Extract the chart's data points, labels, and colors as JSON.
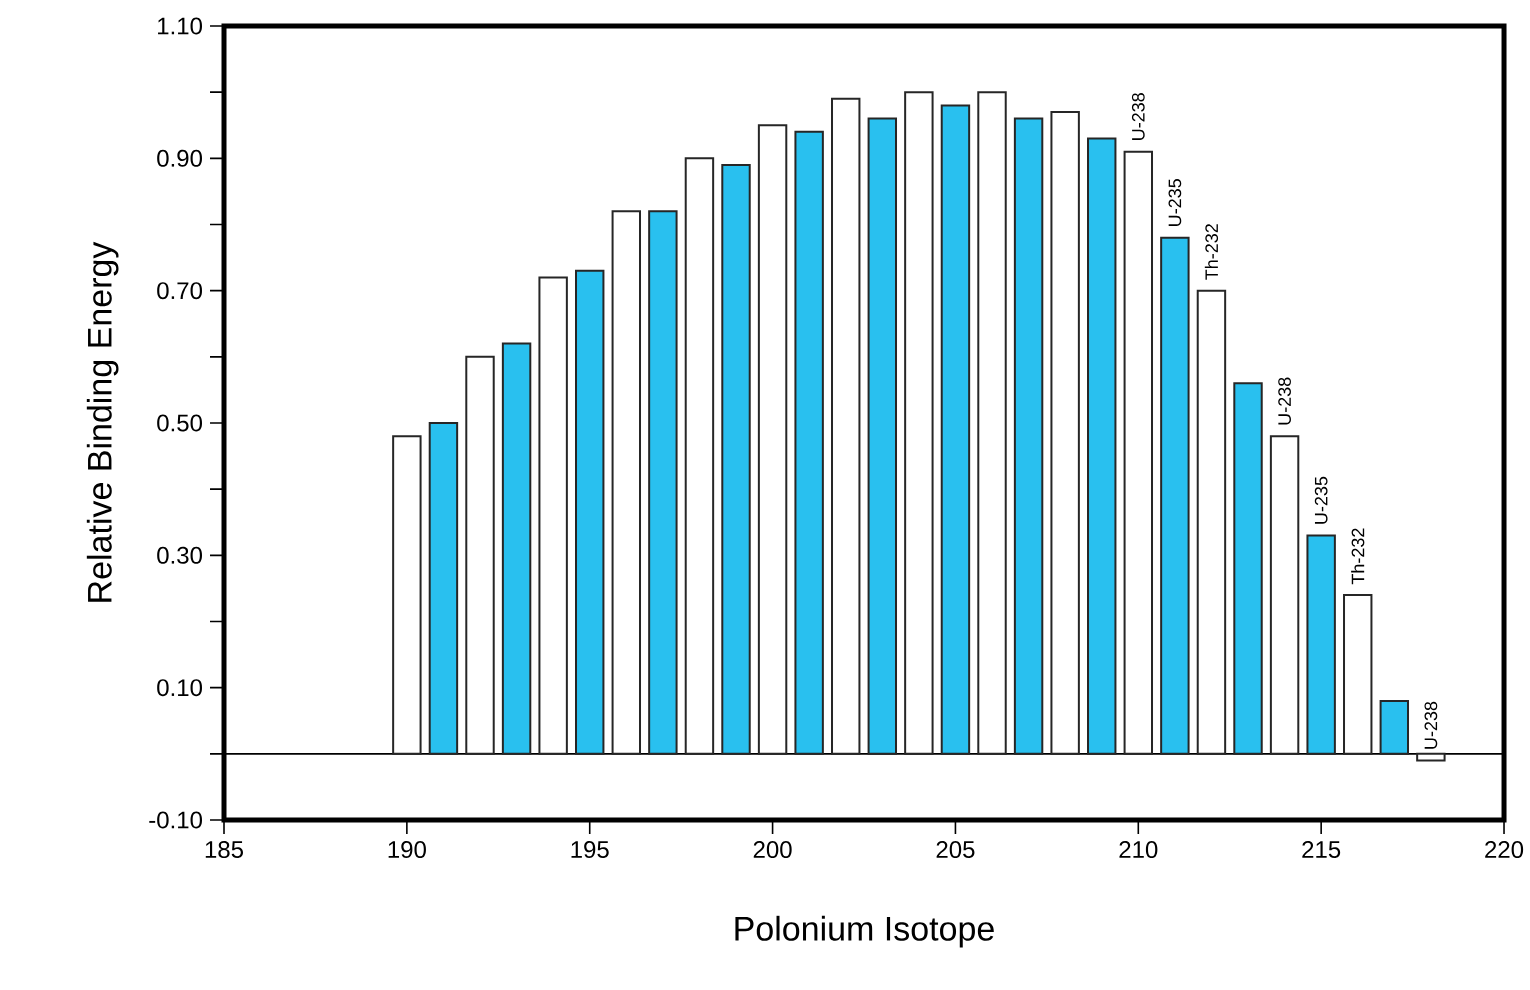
{
  "chart_data": {
    "type": "bar",
    "xlabel": "Polonium Isotope",
    "ylabel": "Relative Binding Energy",
    "x": [
      190,
      191,
      192,
      193,
      194,
      195,
      196,
      197,
      198,
      199,
      200,
      201,
      202,
      203,
      204,
      205,
      206,
      207,
      208,
      209,
      210,
      211,
      212,
      213,
      214,
      215,
      216,
      217,
      218
    ],
    "values": [
      0.48,
      0.5,
      0.6,
      0.62,
      0.72,
      0.73,
      0.82,
      0.82,
      0.9,
      0.89,
      0.95,
      0.94,
      0.99,
      0.96,
      1.0,
      0.98,
      1.0,
      0.96,
      0.97,
      0.93,
      0.91,
      0.78,
      0.7,
      0.56,
      0.48,
      0.33,
      0.24,
      0.08,
      -0.01
    ],
    "colors": [
      "#ffffff",
      "#29c0ef",
      "#ffffff",
      "#29c0ef",
      "#ffffff",
      "#29c0ef",
      "#ffffff",
      "#29c0ef",
      "#ffffff",
      "#29c0ef",
      "#ffffff",
      "#29c0ef",
      "#ffffff",
      "#29c0ef",
      "#ffffff",
      "#29c0ef",
      "#ffffff",
      "#29c0ef",
      "#ffffff",
      "#29c0ef",
      "#ffffff",
      "#29c0ef",
      "#ffffff",
      "#29c0ef",
      "#ffffff",
      "#29c0ef",
      "#ffffff",
      "#29c0ef",
      "#ffffff"
    ],
    "xlim": [
      185,
      220
    ],
    "xticks": [
      185,
      190,
      195,
      200,
      205,
      210,
      215,
      220
    ],
    "ylim": [
      -0.1,
      1.1
    ],
    "yticks": [
      {
        "value": -0.1,
        "label": "-0.10"
      },
      {
        "value": 0,
        "label": null
      },
      {
        "value": 0.1,
        "label": "0.10"
      },
      {
        "value": 0.2,
        "label": null
      },
      {
        "value": 0.3,
        "label": "0.30"
      },
      {
        "value": 0.4,
        "label": null
      },
      {
        "value": 0.5,
        "label": "0.50"
      },
      {
        "value": 0.6,
        "label": null
      },
      {
        "value": 0.7,
        "label": "0.70"
      },
      {
        "value": 0.8,
        "label": null
      },
      {
        "value": 0.9,
        "label": "0.90"
      },
      {
        "value": 1.0,
        "label": null
      },
      {
        "value": 1.1,
        "label": "1.10"
      }
    ],
    "ref_lines": [
      {
        "axis": "y",
        "value": 0,
        "color": "#000000"
      }
    ],
    "grid": false,
    "annotations": [
      {
        "text": "U-238",
        "x": 210,
        "y": 0.91
      },
      {
        "text": "U-235",
        "x": 211,
        "y": 0.78
      },
      {
        "text": "Th-232",
        "x": 212,
        "y": 0.7
      },
      {
        "text": "U-238",
        "x": 214,
        "y": 0.48
      },
      {
        "text": "U-235",
        "x": 215,
        "y": 0.33
      },
      {
        "text": "Th-232",
        "x": 216,
        "y": 0.24
      },
      {
        "text": "U-238",
        "x": 218,
        "y": -0.01
      }
    ]
  }
}
